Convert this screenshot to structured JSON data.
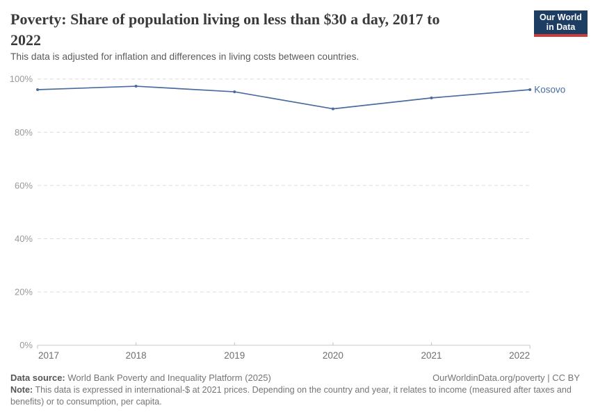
{
  "header": {
    "title_lines": [
      "Poverty: Share of population living on less than $30 a day, 2017 to",
      "2022"
    ],
    "subtitle": "This data is adjusted for inflation and differences in living costs between countries.",
    "logo": {
      "line1": "Our World",
      "line2": "in Data",
      "bg_color": "#1d3d63",
      "accent_color": "#cc3b3b",
      "text_color": "#ffffff"
    }
  },
  "chart_data": {
    "type": "line",
    "title": "Poverty: Share of population living on less than $30 a day, 2017 to 2022",
    "x": [
      2017,
      2018,
      2019,
      2020,
      2021,
      2022
    ],
    "series": [
      {
        "name": "Kosovo",
        "values": [
          96,
          97.3,
          95.2,
          88.8,
          92.9,
          96
        ],
        "color": "#4a6ba0"
      }
    ],
    "xlabel": "",
    "ylabel": "",
    "ylim": [
      0,
      100
    ],
    "yticks": [
      0,
      20,
      40,
      60,
      80,
      100
    ],
    "ytick_suffix": "%",
    "grid": "horizontal dashed",
    "legend_position": "end-of-line label"
  },
  "colors": {
    "line": "#4a6ba0",
    "grid": "#dcdcdc",
    "axis": "#cccccc",
    "tick": "#c0c0c0",
    "ytick_text": "#999999",
    "xtick_text": "#6e6e6e"
  },
  "footer": {
    "datasource_label": "Data source:",
    "datasource_value": "World Bank Poverty and Inequality Platform (2025)",
    "attribution": "OurWorldinData.org/poverty | CC BY",
    "note_label": "Note:",
    "note_value": "This data is expressed in international-$ at 2021 prices. Depending on the country and year, it relates to income (measured after taxes and benefits) or to consumption, per capita."
  }
}
